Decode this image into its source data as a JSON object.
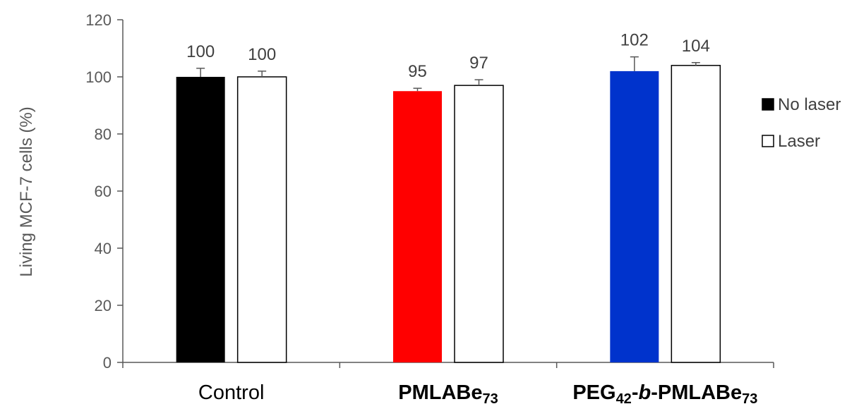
{
  "chart_data": {
    "type": "bar",
    "ylabel": "Living MCF-7 cells (%)",
    "xlabel": "",
    "ylim": [
      0,
      120
    ],
    "ytick_step": 20,
    "yticks": [
      "0",
      "20",
      "40",
      "60",
      "80",
      "100",
      "120"
    ],
    "grid": false,
    "legend_position": "right",
    "categories": [
      {
        "segments": [
          {
            "text": "Control",
            "bold": false
          }
        ]
      },
      {
        "segments": [
          {
            "text": "PMLABe",
            "bold": true
          },
          {
            "text": "73",
            "bold": true,
            "sub": true
          }
        ]
      },
      {
        "segments": [
          {
            "text": "PEG",
            "bold": true
          },
          {
            "text": "42",
            "bold": true,
            "sub": true
          },
          {
            "text": "-",
            "bold": true
          },
          {
            "text": "b",
            "bold": true,
            "italic": true
          },
          {
            "text": "-PMLABe",
            "bold": true
          },
          {
            "text": "73",
            "bold": true,
            "sub": true
          }
        ]
      }
    ],
    "series": [
      {
        "name": "No laser",
        "values": [
          100,
          95,
          102
        ],
        "errors": [
          3,
          1,
          5
        ],
        "colors": [
          "#000000",
          "#ff0000",
          "#0033cc"
        ],
        "legend_color": "#000000",
        "filled": true
      },
      {
        "name": "Laser",
        "values": [
          100,
          97,
          104
        ],
        "errors": [
          2,
          2,
          1
        ],
        "colors": [
          "#ffffff",
          "#ffffff",
          "#ffffff"
        ],
        "legend_color": "#ffffff",
        "filled": false
      }
    ],
    "data_labels": [
      [
        "100",
        "95",
        "102"
      ],
      [
        "100",
        "97",
        "104"
      ]
    ]
  }
}
